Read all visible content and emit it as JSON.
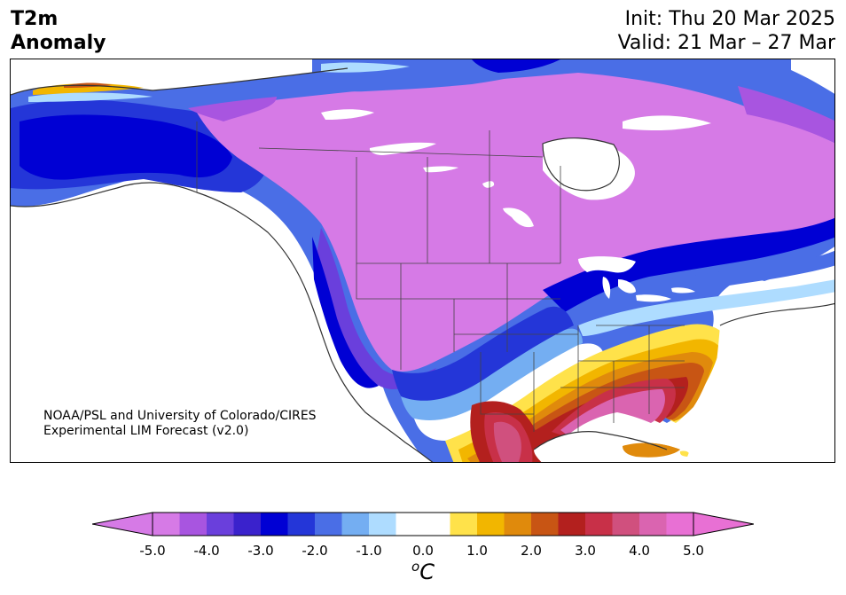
{
  "title": {
    "left_line1": "T2m",
    "left_line2": "Anomaly",
    "init": "Init: Thu 20 Mar 2025",
    "valid": "Valid: 21 Mar – 27 Mar"
  },
  "credit": {
    "line1": "NOAA/PSL and University of Colorado/CIRES",
    "line2": "Experimental LIM Forecast (v2.0)"
  },
  "colorbar": {
    "units_sup": "o",
    "units_base": "C",
    "ticks": [
      "-5.0",
      "-4.0",
      "-3.0",
      "-2.0",
      "-1.0",
      "0.0",
      "1.0",
      "2.0",
      "3.0",
      "4.0",
      "5.0"
    ],
    "colors": [
      "#d67ae6",
      "#a855e0",
      "#6a3fdc",
      "#3a22cc",
      "#0000d4",
      "#2436d8",
      "#4a6ee6",
      "#74aef2",
      "#aedcff",
      "#ffffff",
      "#ffffff",
      "#ffe24a",
      "#f2b600",
      "#e08a0c",
      "#c85514",
      "#b3201e",
      "#c83048",
      "#d0507e",
      "#da64b0",
      "#e870d4"
    ],
    "under_color": "#d67ae6",
    "over_color": "#e870d4"
  },
  "map": {
    "region": "North America",
    "field": "2m temperature anomaly",
    "patterns": {
      "west_cold": "cold anomaly (blue) along Pacific coast, Alaska and Mexico",
      "interior_cold": "strong cold anomaly (purple/magenta) over Canada and northern/central US",
      "southeast_warm": "warm anomaly (orange/red/pink) over southern and eastern US, Texas and Gulf coast"
    }
  }
}
